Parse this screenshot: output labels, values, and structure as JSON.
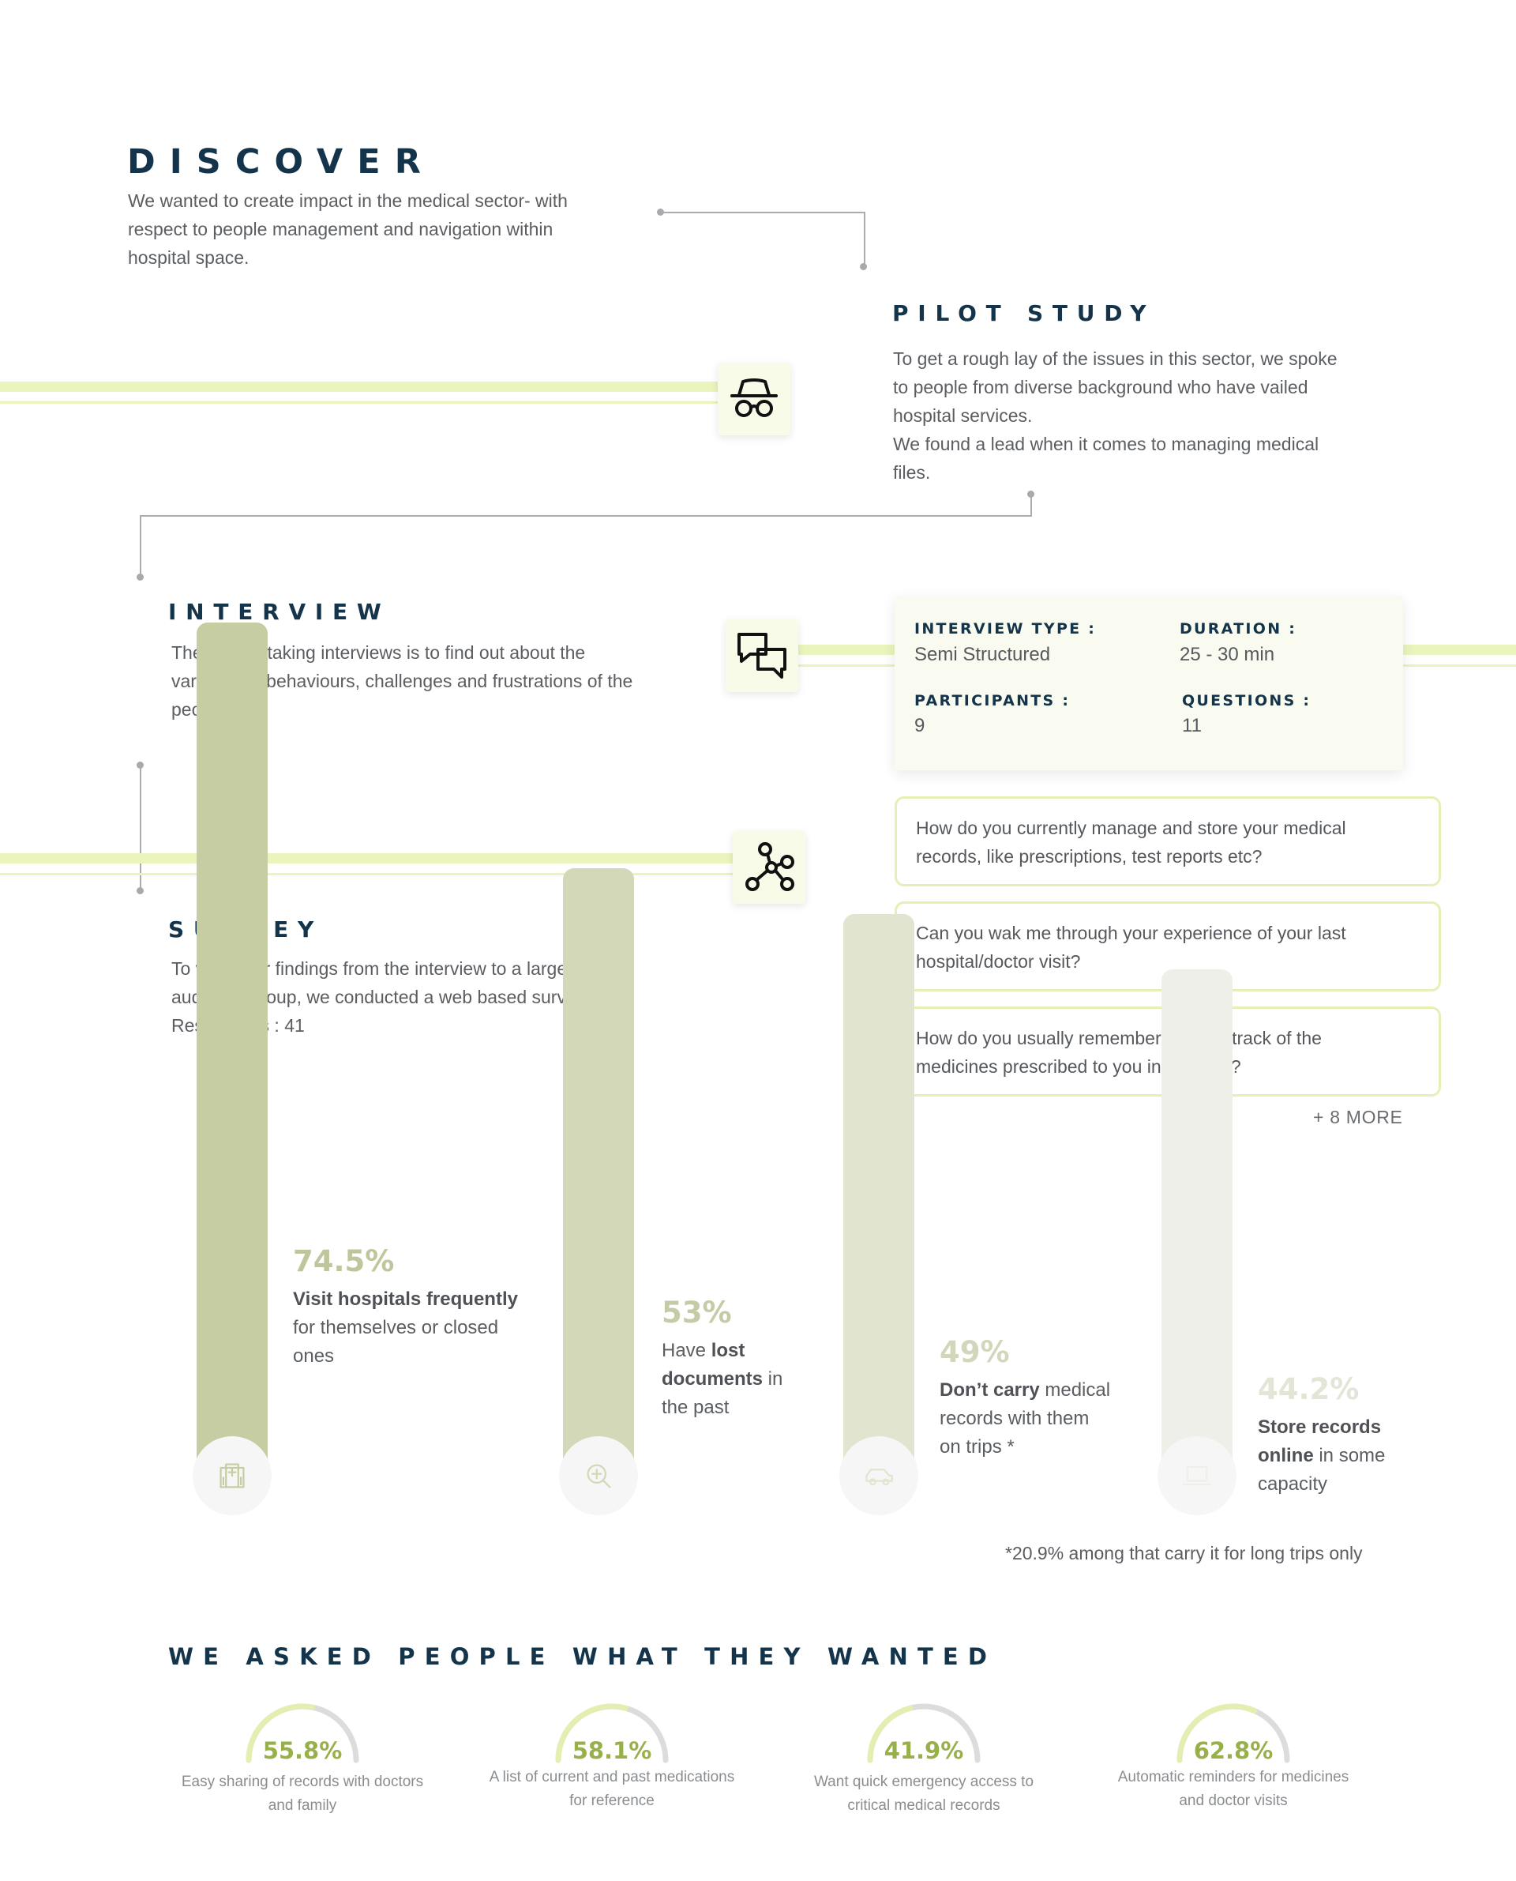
{
  "discover": {
    "title": "DISCOVER",
    "lines": [
      "We wanted to create impact in the medical sector- with",
      "respect to people management and navigation within",
      "hospital space."
    ]
  },
  "pilot": {
    "title": "PILOT STUDY",
    "icon": "incognito-icon",
    "lines": [
      "To get a rough lay of the issues in this sector, we spoke",
      "to people from diverse background who have vailed",
      "hospital services.",
      "We found a lead when it comes to managing medical",
      "files."
    ]
  },
  "interview": {
    "title": "INTERVIEW",
    "icon": "chat-bubbles-icon",
    "lines": [
      "The goal of taking interviews is to find out about the",
      "varied user behaviours, challenges and frustrations of the",
      "people."
    ],
    "details": {
      "type_label": "INTERVIEW TYPE :",
      "type_value": "Semi Structured",
      "duration_label": "DURATION :",
      "duration_value": "25 - 30 min",
      "participants_label": "PARTICIPANTS :",
      "participants_value": "9",
      "questions_label": "QUESTIONS :",
      "questions_value": "11"
    },
    "questions": [
      [
        "How do you currently manage and store your medical",
        "records, like prescriptions, test reports etc?"
      ],
      [
        "Can you wak me through your experience of your last",
        "hospital/doctor visit?"
      ],
      [
        "How do you usually remember or keep track of the",
        "medicines prescribed to you in the past?"
      ]
    ],
    "more": "+ 8  MORE"
  },
  "survey": {
    "title": "SURVEY",
    "icon": "network-nodes-icon",
    "lines": [
      "To verify our findings from the interview to a larger",
      "audience group, we conducted a web based survey.",
      "Responders : 41"
    ]
  },
  "stats": [
    {
      "pct": "74.5%",
      "value": 74.5,
      "icon": "hospital-icon",
      "color": "#c6cda3",
      "pct_color": "#bfc69b",
      "lines": [
        [
          {
            "t": "Visit hospitals frequently",
            "b": true
          }
        ],
        [
          {
            "t": "for themselves or closed",
            "b": false
          }
        ],
        [
          {
            "t": "ones",
            "b": false
          }
        ]
      ]
    },
    {
      "pct": "53%",
      "value": 53,
      "icon": "zoom-in-icon",
      "color": "#d2d8b8",
      "pct_color": "#c5cba7",
      "lines": [
        [
          {
            "t": "Have ",
            "b": false
          },
          {
            "t": "lost",
            "b": true
          }
        ],
        [
          {
            "t": "documents",
            "b": true
          },
          {
            "t": " in",
            "b": false
          }
        ],
        [
          {
            "t": "the past",
            "b": false
          }
        ]
      ]
    },
    {
      "pct": "49%",
      "value": 49,
      "icon": "car-icon",
      "color": "#e1e5d0",
      "pct_color": "#d2d7bb",
      "lines": [
        [
          {
            "t": "Don’t carry",
            "b": true
          },
          {
            "t": " medical",
            "b": false
          }
        ],
        [
          {
            "t": "records with them",
            "b": false
          }
        ],
        [
          {
            "t": "on trips *",
            "b": false
          }
        ]
      ]
    },
    {
      "pct": "44.2%",
      "value": 44.2,
      "icon": "laptop-icon",
      "color": "#efefe9",
      "pct_color": "#e3e6d6",
      "lines": [
        [
          {
            "t": "Store records",
            "b": true
          }
        ],
        [
          {
            "t": "online",
            "b": true
          },
          {
            "t": " in some",
            "b": false
          }
        ],
        [
          {
            "t": "capacity",
            "b": false
          }
        ]
      ]
    }
  ],
  "footnote": "*20.9% among that carry it for long trips only",
  "wants": {
    "title": "WE ASKED PEOPLE WHAT THEY WANTED",
    "items": [
      {
        "pct": "55.8%",
        "value": 55.8,
        "lines": [
          "Easy sharing of records with doctors",
          "and family"
        ]
      },
      {
        "pct": "58.1%",
        "value": 58.1,
        "lines": [
          "A list of current and past medications",
          "for reference"
        ]
      },
      {
        "pct": "41.9%",
        "value": 41.9,
        "lines": [
          "Want quick emergency access to",
          "critical medical records"
        ]
      },
      {
        "pct": "62.8%",
        "value": 62.8,
        "lines": [
          "Automatic reminders for medicines",
          "and doctor visits"
        ]
      }
    ]
  },
  "colors": {
    "heading": "#13344a",
    "band": "#eaf4bd",
    "accent": "#98b04a",
    "track": "#dcdcdc"
  }
}
